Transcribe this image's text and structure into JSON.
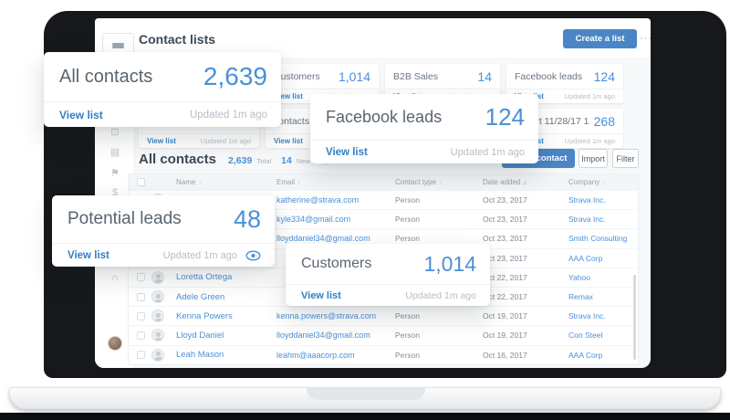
{
  "topbar": {
    "title": "Contact lists",
    "create_button": "Create a list",
    "more_menu": "···"
  },
  "cards": [
    {
      "id": "all-contacts",
      "title": "",
      "count": "",
      "view": "View list",
      "updated": "Updated 1m ago"
    },
    {
      "id": "customers",
      "title": "Customers",
      "count": "1,014",
      "view": "View list",
      "updated": "Updated 1m ago"
    },
    {
      "id": "b2b-sales",
      "title": "B2B Sales",
      "count": "14",
      "view": "View list",
      "updated": "Updated 1m ago"
    },
    {
      "id": "facebook-leads",
      "title": "Facebook leads",
      "count": "124",
      "view": "View list",
      "updated": "Updated 1m ago"
    },
    {
      "id": "hidden-1",
      "title": "",
      "count": "",
      "view": "View list",
      "updated": "Updated 1m ago"
    },
    {
      "id": "partial-contacts",
      "title": "contacts",
      "count": "",
      "view": "View list",
      "updated": "Updated 1m ago"
    },
    {
      "id": "hidden-2",
      "title": "",
      "count": "",
      "view": "View list",
      "updated": "Updated 1m ago"
    },
    {
      "id": "import",
      "title": "Import 11/28/17 11:5...",
      "count": "268",
      "view": "View list",
      "updated": "Updated 1m ago"
    }
  ],
  "section": {
    "title": "All contacts",
    "total_count": "2,639",
    "total_label": "Total",
    "new_count": "14",
    "new_label": "New today",
    "add_button": "Add a contact",
    "import_button": "Import",
    "filter_button": "Filter"
  },
  "table": {
    "headers": [
      {
        "label": "Name",
        "sorted": false
      },
      {
        "label": "Email",
        "sorted": false
      },
      {
        "label": "Contact type",
        "sorted": false
      },
      {
        "label": "Date added",
        "sorted": true
      },
      {
        "label": "Company",
        "sorted": false
      }
    ],
    "rows": [
      {
        "name": "",
        "email": "katherine@strava.com",
        "type": "Person",
        "date": "Oct 23, 2017",
        "company": "Strava Inc."
      },
      {
        "name": "",
        "email": "kyle334@gmail.com",
        "type": "Person",
        "date": "Oct 23, 2017",
        "company": "Strava Inc."
      },
      {
        "name": "",
        "email": "lloyddaniel34@gmail.com",
        "type": "Person",
        "date": "Oct 23, 2017",
        "company": "Smith Consulting"
      },
      {
        "name": "",
        "email": "",
        "type": "",
        "date": "Oct 23, 2017",
        "company": "AAA Corp"
      },
      {
        "name": "Loretta Ortega",
        "email": "",
        "type": "",
        "date": "Oct 22, 2017",
        "company": "Yahoo"
      },
      {
        "name": "Adele Green",
        "email": "",
        "type": "",
        "date": "Oct 22, 2017",
        "company": "Remax"
      },
      {
        "name": "Kenna Powers",
        "email": "kenna.powers@strava.com",
        "type": "Person",
        "date": "Oct 19, 2017",
        "company": "Strava Inc."
      },
      {
        "name": "Lloyd Daniel",
        "email": "lloyddaniel34@gmail.com",
        "type": "Person",
        "date": "Oct 19, 2017",
        "company": "Con Steel"
      },
      {
        "name": "Leah Mason",
        "email": "leahm@aaacorp.com",
        "type": "Person",
        "date": "Oct 16, 2017",
        "company": "AAA Corp"
      }
    ]
  },
  "floating_cards": [
    {
      "id": "all",
      "title": "All contacts",
      "count": "2,639",
      "view": "View list",
      "updated": "Updated 1m ago",
      "eye": false
    },
    {
      "id": "facebook",
      "title": "Facebook leads",
      "count": "124",
      "view": "View list",
      "updated": "Updated 1m ago",
      "eye": false
    },
    {
      "id": "potential",
      "title": "Potential leads",
      "count": "48",
      "view": "View list",
      "updated": "Updated 1m ago",
      "eye": true
    },
    {
      "id": "customers",
      "title": "Customers",
      "count": "1,014",
      "view": "View list",
      "updated": "Updated 1m ago",
      "eye": false
    }
  ],
  "sidebar": {
    "icons": [
      {
        "name": "archive-icon",
        "glyph": "⊡"
      },
      {
        "name": "calendar-icon",
        "glyph": "▤"
      },
      {
        "name": "flag-icon",
        "glyph": "⚑"
      },
      {
        "name": "dollar-icon",
        "glyph": "$"
      },
      {
        "name": "globe-icon",
        "glyph": "◎"
      },
      {
        "name": "headset-icon",
        "glyph": "∩"
      }
    ]
  },
  "colors": {
    "accent_blue": "#4a90d9",
    "button_blue": "#4a86c6",
    "link_blue": "#2f80c8"
  }
}
